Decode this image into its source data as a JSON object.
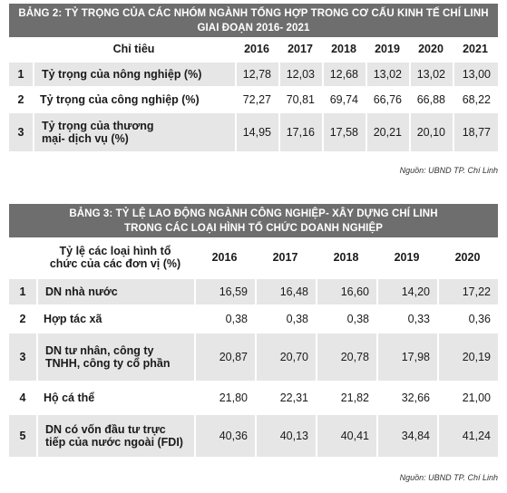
{
  "table2": {
    "title_line1": "BẢNG 2: TỶ TRỌNG CỦA CÁC NHÓM NGÀNH TỔNG HỢP TRONG CƠ CẤU KINH TẾ CHÍ LINH",
    "title_line2": "GIAI ĐOẠN 2016- 2021",
    "header_label": "Chỉ tiêu",
    "years": [
      "2016",
      "2017",
      "2018",
      "2019",
      "2020",
      "2021"
    ],
    "rows": [
      {
        "no": "1",
        "label_line1": "Tỷ trọng của nông nghiệp (%)",
        "label_line2": "",
        "values": [
          "12,78",
          "12,03",
          "12,68",
          "13,02",
          "13,02",
          "13,00"
        ]
      },
      {
        "no": "2",
        "label_line1": "Tỷ trọng của công nghiệp (%)",
        "label_line2": "",
        "values": [
          "72,27",
          "70,81",
          "69,74",
          "66,76",
          "66,88",
          "68,22"
        ]
      },
      {
        "no": "3",
        "label_line1": "Tỷ trọng của thương",
        "label_line2": "mại- dịch vụ (%)",
        "values": [
          "14,95",
          "17,16",
          "17,58",
          "20,21",
          "20,10",
          "18,77"
        ]
      }
    ],
    "source": "Nguồn: UBND TP. Chí Linh"
  },
  "table3": {
    "title_line1": "BẢNG 3: TỶ LỆ LAO ĐỘNG NGÀNH CÔNG NGHIỆP- XÂY DỰNG CHÍ LINH",
    "title_line2": "TRONG CÁC LOẠI HÌNH TỔ CHỨC DOANH NGHIỆP",
    "header_label_line1": "Tỷ lệ các loại hình tổ",
    "header_label_line2": "chức của các đơn vị (%)",
    "years": [
      "2016",
      "2017",
      "2018",
      "2019",
      "2020"
    ],
    "rows": [
      {
        "no": "1",
        "label_line1": "DN nhà nước",
        "label_line2": "",
        "values": [
          "16,59",
          "16,48",
          "16,60",
          "14,20",
          "17,22"
        ]
      },
      {
        "no": "2",
        "label_line1": "Hợp tác xã",
        "label_line2": "",
        "values": [
          "0,38",
          "0,38",
          "0,38",
          "0,33",
          "0,36"
        ]
      },
      {
        "no": "3",
        "label_line1": "DN tư nhân, công ty",
        "label_line2": "TNHH, công ty cổ phần",
        "values": [
          "20,87",
          "20,70",
          "20,78",
          "17,98",
          "20,19"
        ]
      },
      {
        "no": "4",
        "label_line1": "Hộ cá thể",
        "label_line2": "",
        "values": [
          "21,80",
          "22,31",
          "21,82",
          "32,66",
          "21,00"
        ]
      },
      {
        "no": "5",
        "label_line1": "DN có vốn đầu tư trực",
        "label_line2": "tiếp của nước ngoài (FDI)",
        "values": [
          "40,36",
          "40,13",
          "40,41",
          "34,84",
          "41,24"
        ]
      }
    ],
    "source": "Nguồn: UBND TP. Chí Linh"
  },
  "colors": {
    "title_bg": "#6e6e6e",
    "cell_shade": "#e6e6e6"
  }
}
